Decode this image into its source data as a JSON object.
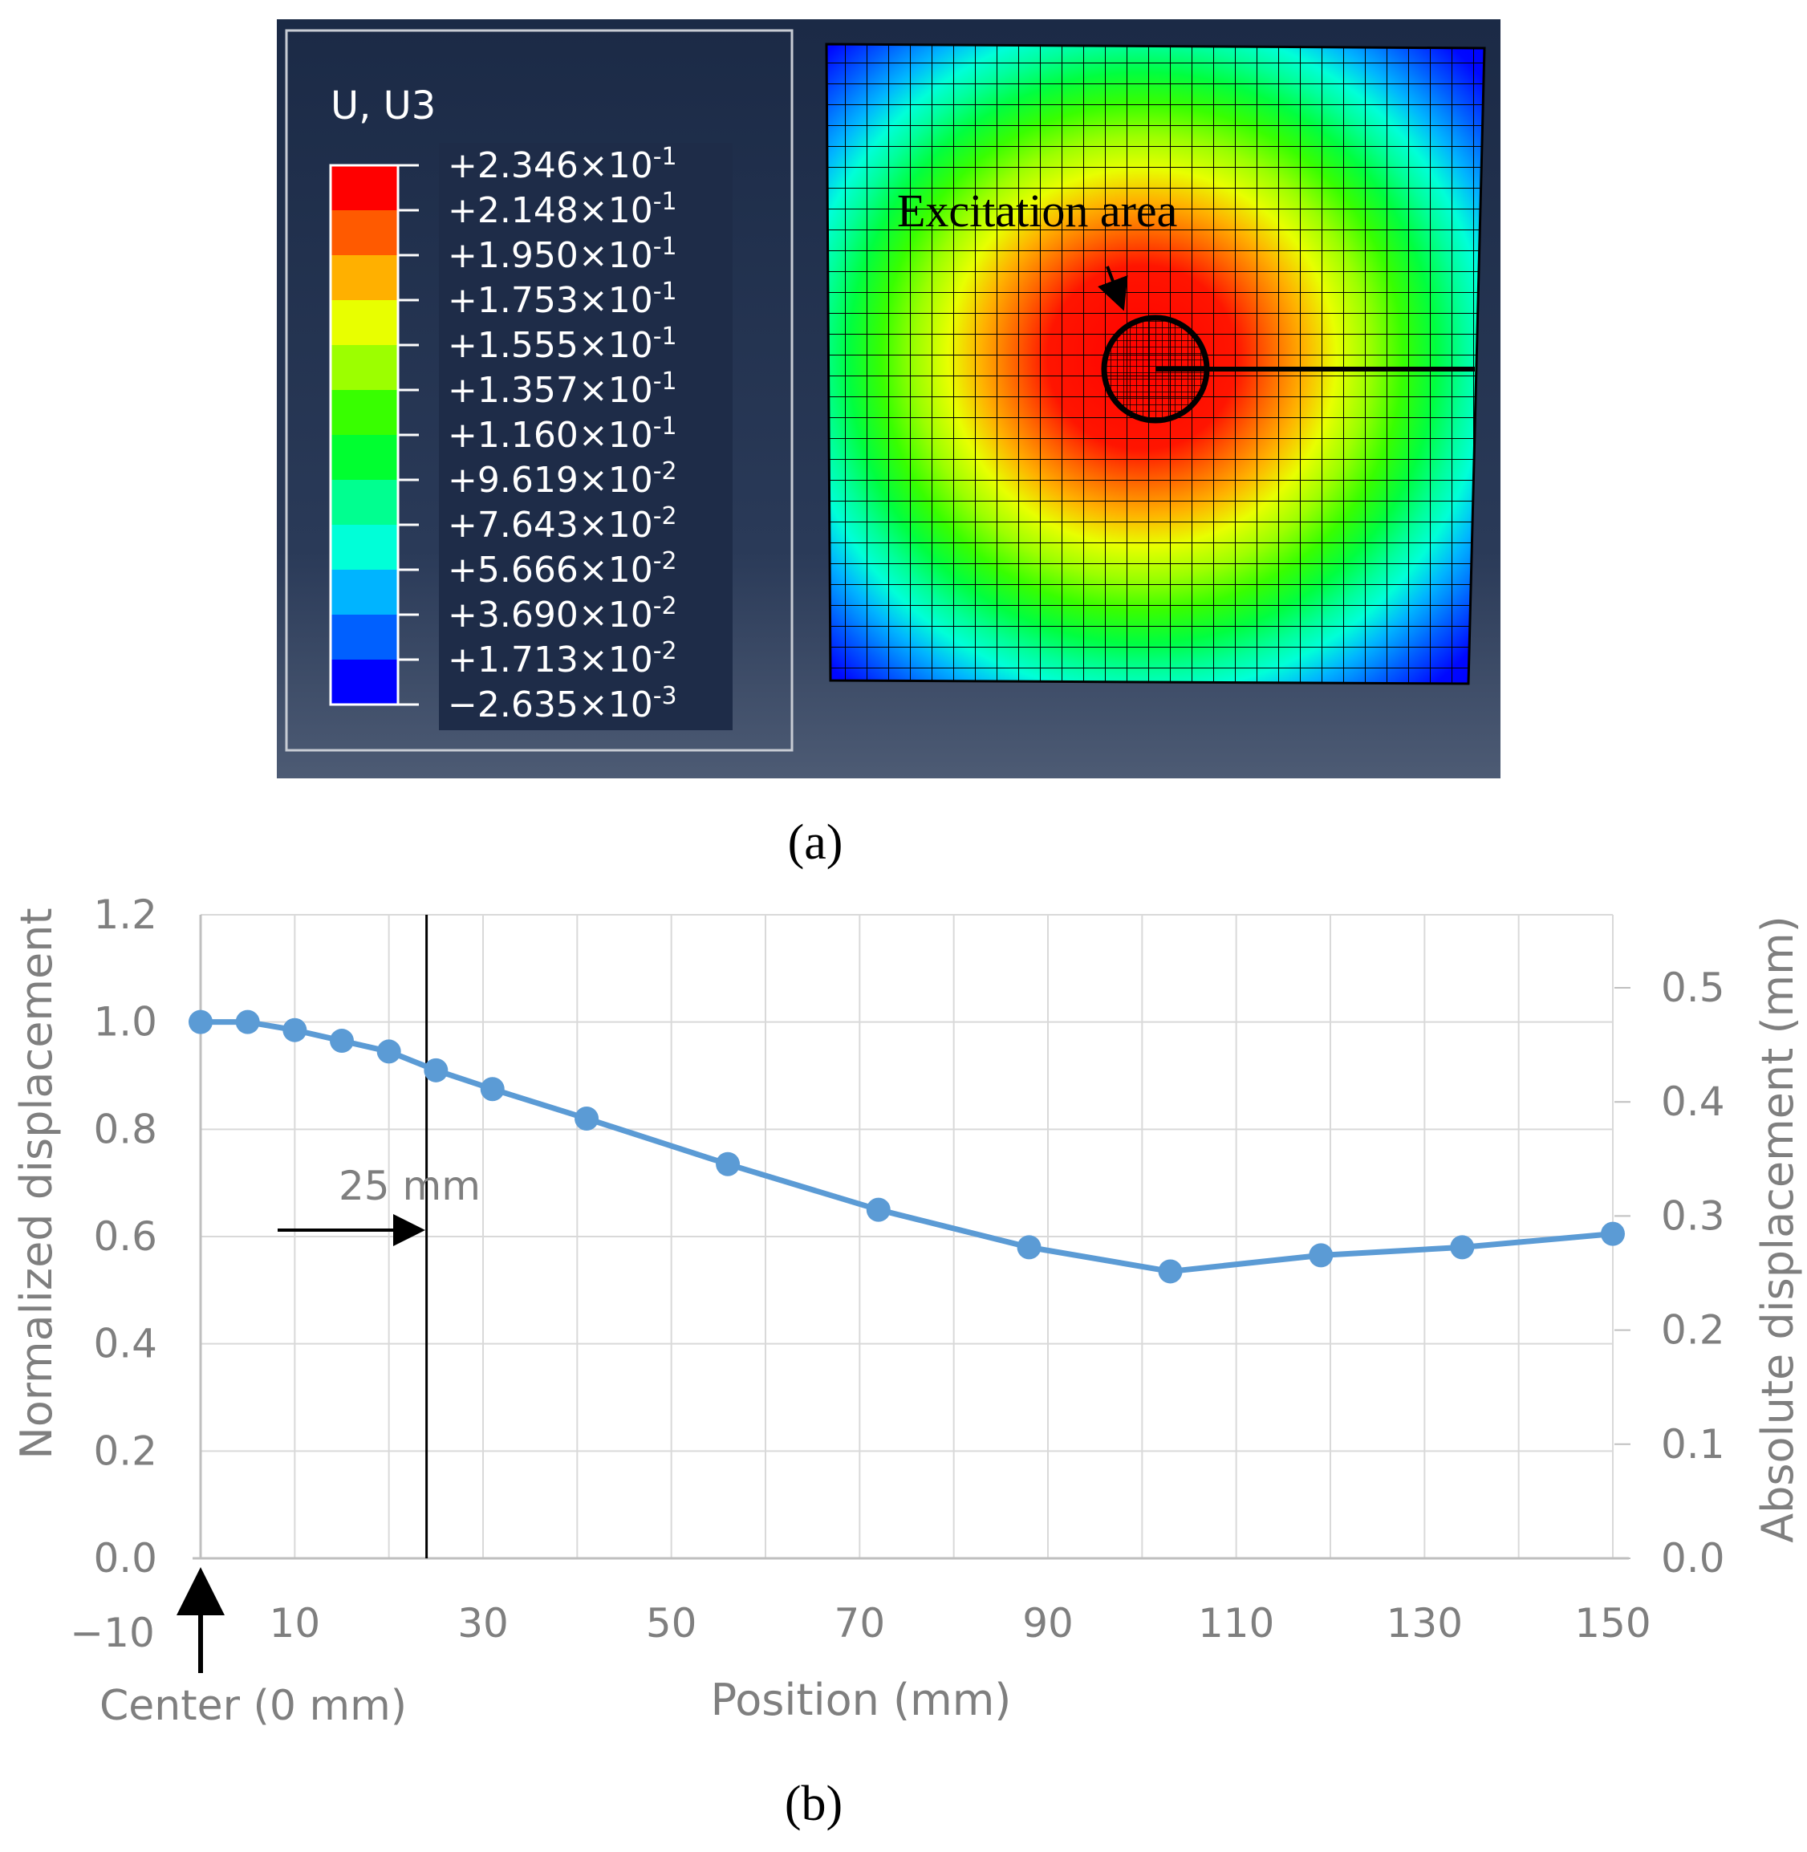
{
  "panel_a": {
    "caption": "(a)",
    "legend": {
      "title": "U, U3",
      "labels": [
        {
          "mant": "+2.346×10",
          "exp": "-1"
        },
        {
          "mant": "+2.148×10",
          "exp": "-1"
        },
        {
          "mant": "+1.950×10",
          "exp": "-1"
        },
        {
          "mant": "+1.753×10",
          "exp": "-1"
        },
        {
          "mant": "+1.555×10",
          "exp": "-1"
        },
        {
          "mant": "+1.357×10",
          "exp": "-1"
        },
        {
          "mant": "+1.160×10",
          "exp": "-1"
        },
        {
          "mant": "+9.619×10",
          "exp": "-2"
        },
        {
          "mant": "+7.643×10",
          "exp": "-2"
        },
        {
          "mant": "+5.666×10",
          "exp": "-2"
        },
        {
          "mant": "+3.690×10",
          "exp": "-2"
        },
        {
          "mant": "+1.713×10",
          "exp": "-2"
        },
        {
          "mant": "−2.635×10",
          "exp": "-3"
        }
      ],
      "colors": [
        "#ff0000",
        "#ff5a00",
        "#ffb000",
        "#e8ff00",
        "#9cff00",
        "#38ff00",
        "#00ff30",
        "#00ff90",
        "#00ffd8",
        "#00b4ff",
        "#0060ff",
        "#0000ff"
      ]
    },
    "annotation": "Excitation area"
  },
  "panel_b": {
    "caption": "(b)",
    "annotation_25mm": "25 mm",
    "center_label": "Center (0 mm)"
  },
  "chart_data": {
    "type": "line",
    "title": "",
    "xlabel": "Position (mm)",
    "ylabel": "Normalized displacement",
    "y2label": "Absolute displacement (mm)",
    "xlim": [
      0,
      150
    ],
    "ylim": [
      0,
      1.2
    ],
    "y2lim": [
      0,
      0.564
    ],
    "xticks": [
      "−10",
      "10",
      "30",
      "50",
      "70",
      "90",
      "110",
      "130",
      "150"
    ],
    "yticks": [
      "0.0",
      "0.2",
      "0.4",
      "0.6",
      "0.8",
      "1.0",
      "1.2"
    ],
    "y2ticks": [
      "0.0",
      "0.1",
      "0.2",
      "0.3",
      "0.4",
      "0.5"
    ],
    "series": [
      {
        "name": "Normalized displacement",
        "color": "#5b9bd5",
        "x": [
          0,
          5,
          10,
          15,
          20,
          25,
          31,
          41,
          56,
          72,
          88,
          103,
          119,
          134,
          150
        ],
        "y": [
          1.0,
          1.0,
          0.985,
          0.965,
          0.945,
          0.91,
          0.875,
          0.82,
          0.735,
          0.65,
          0.58,
          0.535,
          0.565,
          0.58,
          0.605
        ]
      }
    ],
    "vline_x": 24
  }
}
